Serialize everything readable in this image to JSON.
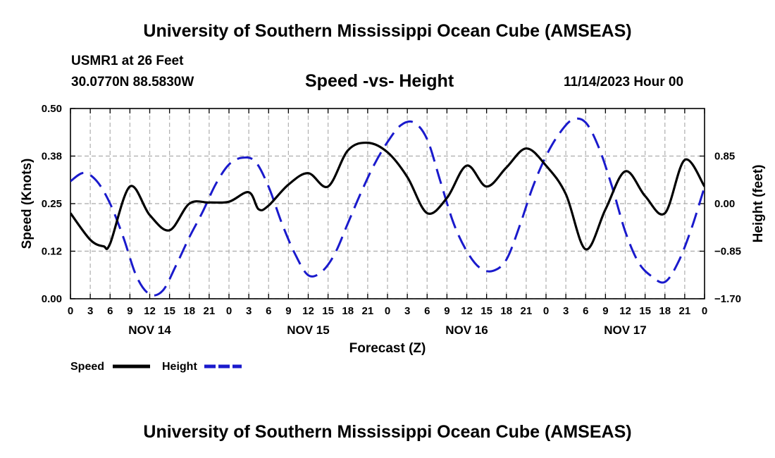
{
  "header": {
    "title": "University of Southern Mississippi Ocean Cube (AMSEAS)",
    "station": "USMR1 at 26 Feet",
    "coords": "30.0770N  88.5830W",
    "chart_title": "Speed -vs- Height",
    "run_time": "11/14/2023 Hour 00"
  },
  "footer": {
    "title": "University of Southern Mississippi Ocean Cube (AMSEAS)"
  },
  "colors": {
    "speed": "#000000",
    "height": "#1a1acc",
    "grid": "#b4b4b4"
  },
  "chart_data": {
    "type": "line",
    "title": "Speed -vs- Height",
    "xlabel": "Forecast (Z)",
    "ylabel_left": "Speed (Knots)",
    "ylabel_right": "Height (feet)",
    "xlim": [
      0,
      96
    ],
    "ylim_left": [
      0,
      0.5
    ],
    "ylim_right": [
      -1.7,
      1.7
    ],
    "x_ticks": [
      0,
      3,
      6,
      9,
      12,
      15,
      18,
      21,
      24,
      27,
      30,
      33,
      36,
      39,
      42,
      45,
      48,
      51,
      54,
      57,
      60,
      63,
      66,
      69,
      72,
      75,
      78,
      81,
      84,
      87,
      90,
      93,
      96
    ],
    "x_tick_labels": [
      "0",
      "3",
      "6",
      "9",
      "12",
      "15",
      "18",
      "21",
      "0",
      "3",
      "6",
      "9",
      "12",
      "15",
      "18",
      "21",
      "0",
      "3",
      "6",
      "9",
      "12",
      "15",
      "18",
      "21",
      "0",
      "3",
      "6",
      "9",
      "12",
      "15",
      "18",
      "21",
      "0"
    ],
    "date_labels": [
      {
        "x": 12,
        "label": "NOV 14"
      },
      {
        "x": 36,
        "label": "NOV 15"
      },
      {
        "x": 60,
        "label": "NOV 16"
      },
      {
        "x": 84,
        "label": "NOV 17"
      }
    ],
    "y_ticks_left": [
      0,
      0.125,
      0.25,
      0.375,
      0.5
    ],
    "y_tick_labels_left": [
      "0.00",
      "0.12",
      "0.25",
      "0.38",
      "0.50"
    ],
    "y_ticks_right": [
      -1.7,
      -0.85,
      0,
      0.85
    ],
    "y_tick_labels_right": [
      "−1.70",
      "−0.85",
      "0.00",
      "0.85"
    ],
    "grid": true,
    "legend": [
      {
        "name": "Speed",
        "style": "solid"
      },
      {
        "name": "Height",
        "style": "dashed"
      }
    ],
    "series": [
      {
        "name": "Speed",
        "axis": "left",
        "points": [
          [
            0,
            0.225
          ],
          [
            3,
            0.155
          ],
          [
            5,
            0.138
          ],
          [
            6,
            0.145
          ],
          [
            9,
            0.295
          ],
          [
            12,
            0.22
          ],
          [
            15,
            0.18
          ],
          [
            18,
            0.25
          ],
          [
            21,
            0.253
          ],
          [
            24,
            0.255
          ],
          [
            27,
            0.28
          ],
          [
            28.5,
            0.235
          ],
          [
            30,
            0.245
          ],
          [
            33,
            0.3
          ],
          [
            36,
            0.33
          ],
          [
            39,
            0.295
          ],
          [
            42,
            0.39
          ],
          [
            45,
            0.41
          ],
          [
            48,
            0.385
          ],
          [
            51,
            0.32
          ],
          [
            54,
            0.225
          ],
          [
            57,
            0.265
          ],
          [
            60,
            0.35
          ],
          [
            63,
            0.295
          ],
          [
            66,
            0.345
          ],
          [
            69,
            0.395
          ],
          [
            72,
            0.35
          ],
          [
            75,
            0.275
          ],
          [
            78,
            0.13
          ],
          [
            81,
            0.235
          ],
          [
            84,
            0.335
          ],
          [
            87,
            0.27
          ],
          [
            90,
            0.225
          ],
          [
            93,
            0.365
          ],
          [
            96,
            0.295
          ]
        ]
      },
      {
        "name": "Height",
        "axis": "right",
        "points": [
          [
            0,
            0.4
          ],
          [
            2,
            0.55
          ],
          [
            4,
            0.4
          ],
          [
            6,
            0.0
          ],
          [
            8,
            -0.6
          ],
          [
            10,
            -1.3
          ],
          [
            12,
            -1.62
          ],
          [
            14,
            -1.55
          ],
          [
            16,
            -1.1
          ],
          [
            18,
            -0.6
          ],
          [
            20,
            -0.15
          ],
          [
            22,
            0.35
          ],
          [
            24,
            0.7
          ],
          [
            26,
            0.82
          ],
          [
            28,
            0.75
          ],
          [
            30,
            0.3
          ],
          [
            32,
            -0.35
          ],
          [
            34,
            -0.9
          ],
          [
            36,
            -1.28
          ],
          [
            38,
            -1.22
          ],
          [
            40,
            -0.9
          ],
          [
            42,
            -0.35
          ],
          [
            44,
            0.2
          ],
          [
            46,
            0.7
          ],
          [
            48,
            1.1
          ],
          [
            50,
            1.4
          ],
          [
            52,
            1.45
          ],
          [
            54,
            1.15
          ],
          [
            56,
            0.4
          ],
          [
            58,
            -0.35
          ],
          [
            60,
            -0.85
          ],
          [
            62,
            -1.15
          ],
          [
            64,
            -1.2
          ],
          [
            66,
            -1.0
          ],
          [
            68,
            -0.4
          ],
          [
            70,
            0.3
          ],
          [
            72,
            0.85
          ],
          [
            74,
            1.25
          ],
          [
            76,
            1.5
          ],
          [
            78,
            1.45
          ],
          [
            80,
            1.0
          ],
          [
            82,
            0.3
          ],
          [
            84,
            -0.5
          ],
          [
            86,
            -1.05
          ],
          [
            88,
            -1.3
          ],
          [
            90,
            -1.4
          ],
          [
            92,
            -1.05
          ],
          [
            94,
            -0.45
          ],
          [
            96,
            0.3
          ]
        ]
      }
    ]
  }
}
